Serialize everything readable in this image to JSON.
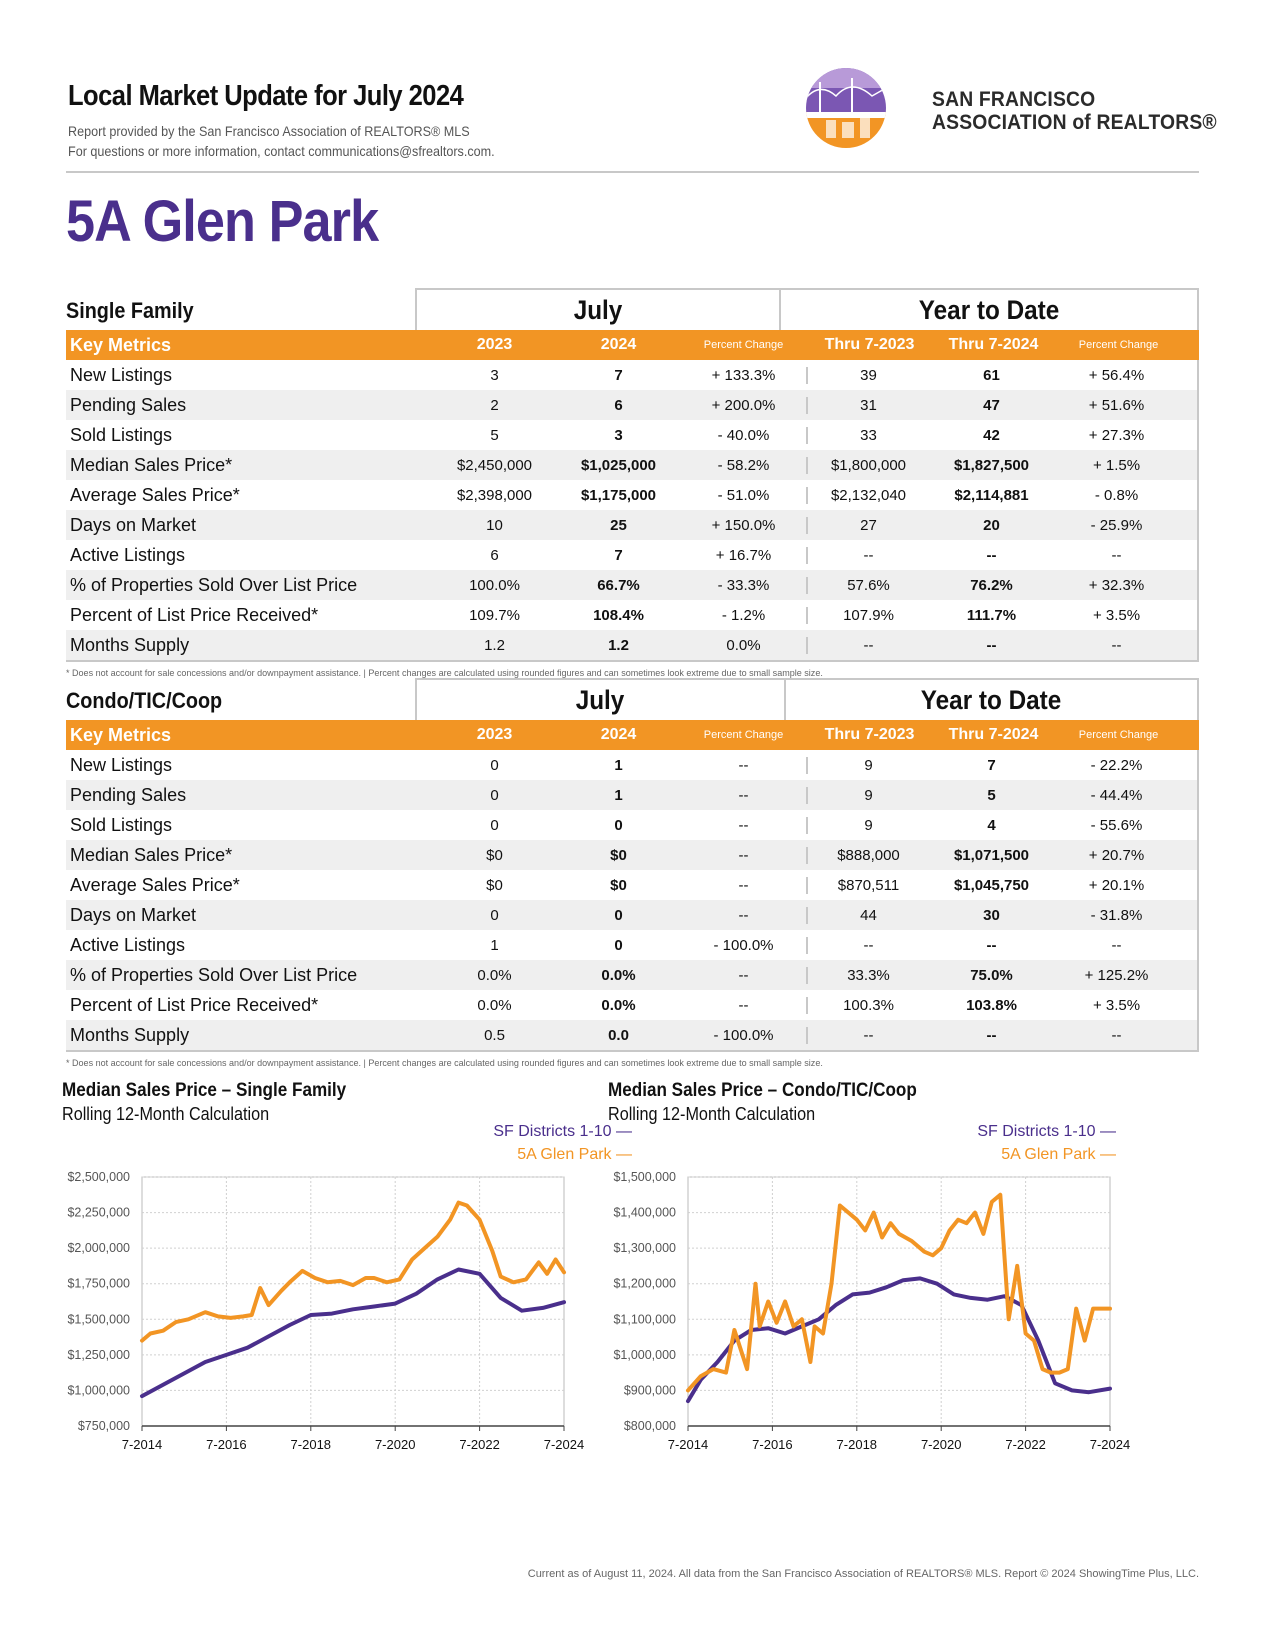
{
  "header": {
    "title": "Local Market Update for July 2024",
    "sub1": "Report provided by the San Francisco Association of REALTORS® MLS",
    "sub2": "For questions or more information, contact communications@sfrealtors.com.",
    "logo_line1": "SAN FRANCISCO",
    "logo_line2": "ASSOCIATION of REALTORS®"
  },
  "page_title": "5A Glen Park",
  "colors": {
    "orange": "#f29524",
    "purple": "#4a2f8c",
    "gray_rule": "#c8c8c8"
  },
  "single_family": {
    "name": "Single Family",
    "group_month": "July",
    "group_ytd": "Year to Date",
    "head": {
      "key_metrics": "Key Metrics",
      "y1": "2023",
      "y2": "2024",
      "pc": "Percent Change",
      "t1": "Thru 7-2023",
      "t2": "Thru 7-2024",
      "pc2": "Percent Change"
    },
    "rows": [
      [
        "New Listings",
        "3",
        "7",
        "+ 133.3%",
        "39",
        "61",
        "+ 56.4%"
      ],
      [
        "Pending Sales",
        "2",
        "6",
        "+ 200.0%",
        "31",
        "47",
        "+ 51.6%"
      ],
      [
        "Sold Listings",
        "5",
        "3",
        "- 40.0%",
        "33",
        "42",
        "+ 27.3%"
      ],
      [
        "Median Sales Price*",
        "$2,450,000",
        "$1,025,000",
        "- 58.2%",
        "$1,800,000",
        "$1,827,500",
        "+ 1.5%"
      ],
      [
        "Average Sales Price*",
        "$2,398,000",
        "$1,175,000",
        "- 51.0%",
        "$2,132,040",
        "$2,114,881",
        "- 0.8%"
      ],
      [
        "Days on Market",
        "10",
        "25",
        "+ 150.0%",
        "27",
        "20",
        "- 25.9%"
      ],
      [
        "Active Listings",
        "6",
        "7",
        "+ 16.7%",
        "--",
        "--",
        "--"
      ],
      [
        "% of Properties Sold Over List Price",
        "100.0%",
        "66.7%",
        "- 33.3%",
        "57.6%",
        "76.2%",
        "+ 32.3%"
      ],
      [
        "Percent of List Price Received*",
        "109.7%",
        "108.4%",
        "- 1.2%",
        "107.9%",
        "111.7%",
        "+ 3.5%"
      ],
      [
        "Months Supply",
        "1.2",
        "1.2",
        "0.0%",
        "--",
        "--",
        "--"
      ]
    ],
    "footnote": "* Does not account for sale concessions and/or downpayment assistance.  |  Percent changes are calculated using rounded figures and can sometimes look extreme due to small sample size."
  },
  "condo": {
    "name": "Condo/TIC/Coop",
    "group_month": "July",
    "group_ytd": "Year to Date",
    "head": {
      "key_metrics": "Key Metrics",
      "y1": "2023",
      "y2": "2024",
      "pc": "Percent Change",
      "t1": "Thru 7-2023",
      "t2": "Thru 7-2024",
      "pc2": "Percent Change"
    },
    "rows": [
      [
        "New Listings",
        "0",
        "1",
        "--",
        "9",
        "7",
        "- 22.2%"
      ],
      [
        "Pending Sales",
        "0",
        "1",
        "--",
        "9",
        "5",
        "- 44.4%"
      ],
      [
        "Sold Listings",
        "0",
        "0",
        "--",
        "9",
        "4",
        "- 55.6%"
      ],
      [
        "Median Sales Price*",
        "$0",
        "$0",
        "--",
        "$888,000",
        "$1,071,500",
        "+ 20.7%"
      ],
      [
        "Average Sales Price*",
        "$0",
        "$0",
        "--",
        "$870,511",
        "$1,045,750",
        "+ 20.1%"
      ],
      [
        "Days on Market",
        "0",
        "0",
        "--",
        "44",
        "30",
        "- 31.8%"
      ],
      [
        "Active Listings",
        "1",
        "0",
        "- 100.0%",
        "--",
        "--",
        "--"
      ],
      [
        "% of Properties Sold Over List Price",
        "0.0%",
        "0.0%",
        "--",
        "33.3%",
        "75.0%",
        "+ 125.2%"
      ],
      [
        "Percent of List Price Received*",
        "0.0%",
        "0.0%",
        "--",
        "100.3%",
        "103.8%",
        "+ 3.5%"
      ],
      [
        "Months Supply",
        "0.5",
        "0.0",
        "- 100.0%",
        "--",
        "--",
        "--"
      ]
    ],
    "footnote": "* Does not account for sale concessions and/or downpayment assistance.  |  Percent changes are calculated using rounded figures and can sometimes look extreme due to small sample size."
  },
  "chart_data": [
    {
      "type": "line",
      "title": "Median Sales Price – Single Family",
      "subtitle": "Rolling 12-Month Calculation",
      "x_ticks": [
        "7-2014",
        "7-2016",
        "7-2018",
        "7-2020",
        "7-2022",
        "7-2024"
      ],
      "x_range": [
        2014.5,
        2024.5
      ],
      "y_ticks": [
        "$750,000",
        "$1,000,000",
        "$1,250,000",
        "$1,500,000",
        "$1,750,000",
        "$2,000,000",
        "$2,250,000",
        "$2,500,000"
      ],
      "ylim": [
        750000,
        2500000
      ],
      "series": [
        {
          "name": "SF Districts 1-10 —",
          "color": "#4a2f8c",
          "x": [
            2014.5,
            2015,
            2015.5,
            2016,
            2016.5,
            2017,
            2017.5,
            2018,
            2018.5,
            2019,
            2019.5,
            2020,
            2020.5,
            2021,
            2021.5,
            2022,
            2022.5,
            2023,
            2023.5,
            2024,
            2024.5
          ],
          "y": [
            960000,
            1040000,
            1120000,
            1200000,
            1250000,
            1300000,
            1380000,
            1460000,
            1530000,
            1540000,
            1570000,
            1590000,
            1610000,
            1680000,
            1780000,
            1850000,
            1820000,
            1650000,
            1560000,
            1580000,
            1620000
          ]
        },
        {
          "name": "5A Glen Park —",
          "color": "#f29524",
          "x": [
            2014.5,
            2014.7,
            2015,
            2015.3,
            2015.6,
            2016,
            2016.3,
            2016.6,
            2016.9,
            2017.1,
            2017.3,
            2017.5,
            2017.8,
            2018,
            2018.3,
            2018.6,
            2018.9,
            2019.2,
            2019.5,
            2019.8,
            2020,
            2020.3,
            2020.6,
            2020.9,
            2021.2,
            2021.5,
            2021.8,
            2022,
            2022.2,
            2022.5,
            2022.8,
            2023,
            2023.3,
            2023.6,
            2023.9,
            2024.1,
            2024.3,
            2024.5
          ],
          "y": [
            1350000,
            1400000,
            1420000,
            1480000,
            1500000,
            1550000,
            1520000,
            1510000,
            1520000,
            1530000,
            1720000,
            1600000,
            1700000,
            1760000,
            1840000,
            1790000,
            1760000,
            1770000,
            1740000,
            1790000,
            1790000,
            1760000,
            1780000,
            1920000,
            2000000,
            2080000,
            2200000,
            2320000,
            2300000,
            2200000,
            1980000,
            1800000,
            1760000,
            1780000,
            1900000,
            1820000,
            1920000,
            1830000
          ]
        }
      ]
    },
    {
      "type": "line",
      "title": "Median Sales Price – Condo/TIC/Coop",
      "subtitle": "Rolling 12-Month Calculation",
      "x_ticks": [
        "7-2014",
        "7-2016",
        "7-2018",
        "7-2020",
        "7-2022",
        "7-2024"
      ],
      "x_range": [
        2014.5,
        2024.5
      ],
      "y_ticks": [
        "$800,000",
        "$900,000",
        "$1,000,000",
        "$1,100,000",
        "$1,200,000",
        "$1,300,000",
        "$1,400,000",
        "$1,500,000"
      ],
      "ylim": [
        800000,
        1500000
      ],
      "series": [
        {
          "name": "SF Districts 1-10 —",
          "color": "#4a2f8c",
          "x": [
            2014.5,
            2014.8,
            2015.2,
            2015.6,
            2016,
            2016.4,
            2016.8,
            2017.2,
            2017.6,
            2018,
            2018.4,
            2018.8,
            2019.2,
            2019.6,
            2020,
            2020.4,
            2020.8,
            2021.2,
            2021.6,
            2022,
            2022.4,
            2022.8,
            2023.2,
            2023.6,
            2024,
            2024.5
          ],
          "y": [
            870000,
            930000,
            980000,
            1040000,
            1070000,
            1075000,
            1060000,
            1080000,
            1100000,
            1140000,
            1170000,
            1175000,
            1190000,
            1210000,
            1215000,
            1200000,
            1170000,
            1160000,
            1155000,
            1165000,
            1140000,
            1040000,
            920000,
            900000,
            895000,
            905000
          ]
        },
        {
          "name": "5A Glen Park —",
          "color": "#f29524",
          "x": [
            2014.5,
            2014.8,
            2015.1,
            2015.4,
            2015.6,
            2015.9,
            2016.1,
            2016.2,
            2016.4,
            2016.6,
            2016.8,
            2017,
            2017.2,
            2017.4,
            2017.5,
            2017.7,
            2017.9,
            2018.1,
            2018.3,
            2018.5,
            2018.7,
            2018.9,
            2019.1,
            2019.3,
            2019.5,
            2019.8,
            2020.1,
            2020.3,
            2020.5,
            2020.7,
            2020.9,
            2021.1,
            2021.3,
            2021.5,
            2021.7,
            2021.9,
            2022.1,
            2022.3,
            2022.5,
            2022.7,
            2022.9,
            2023.1,
            2023.3,
            2023.5,
            2023.7,
            2023.9,
            2024.1,
            2024.3,
            2024.5
          ],
          "y": [
            900000,
            940000,
            960000,
            950000,
            1070000,
            960000,
            1200000,
            1080000,
            1150000,
            1090000,
            1150000,
            1080000,
            1100000,
            980000,
            1080000,
            1060000,
            1200000,
            1420000,
            1400000,
            1380000,
            1350000,
            1400000,
            1330000,
            1370000,
            1340000,
            1320000,
            1290000,
            1280000,
            1300000,
            1350000,
            1380000,
            1370000,
            1400000,
            1340000,
            1430000,
            1450000,
            1100000,
            1250000,
            1060000,
            1040000,
            960000,
            950000,
            950000,
            960000,
            1130000,
            1040000,
            1130000,
            1130000,
            1130000
          ]
        }
      ]
    }
  ],
  "footer": "Current as of August 11, 2024. All data from the San Francisco Association of REALTORS® MLS. Report © 2024 ShowingTime Plus, LLC."
}
